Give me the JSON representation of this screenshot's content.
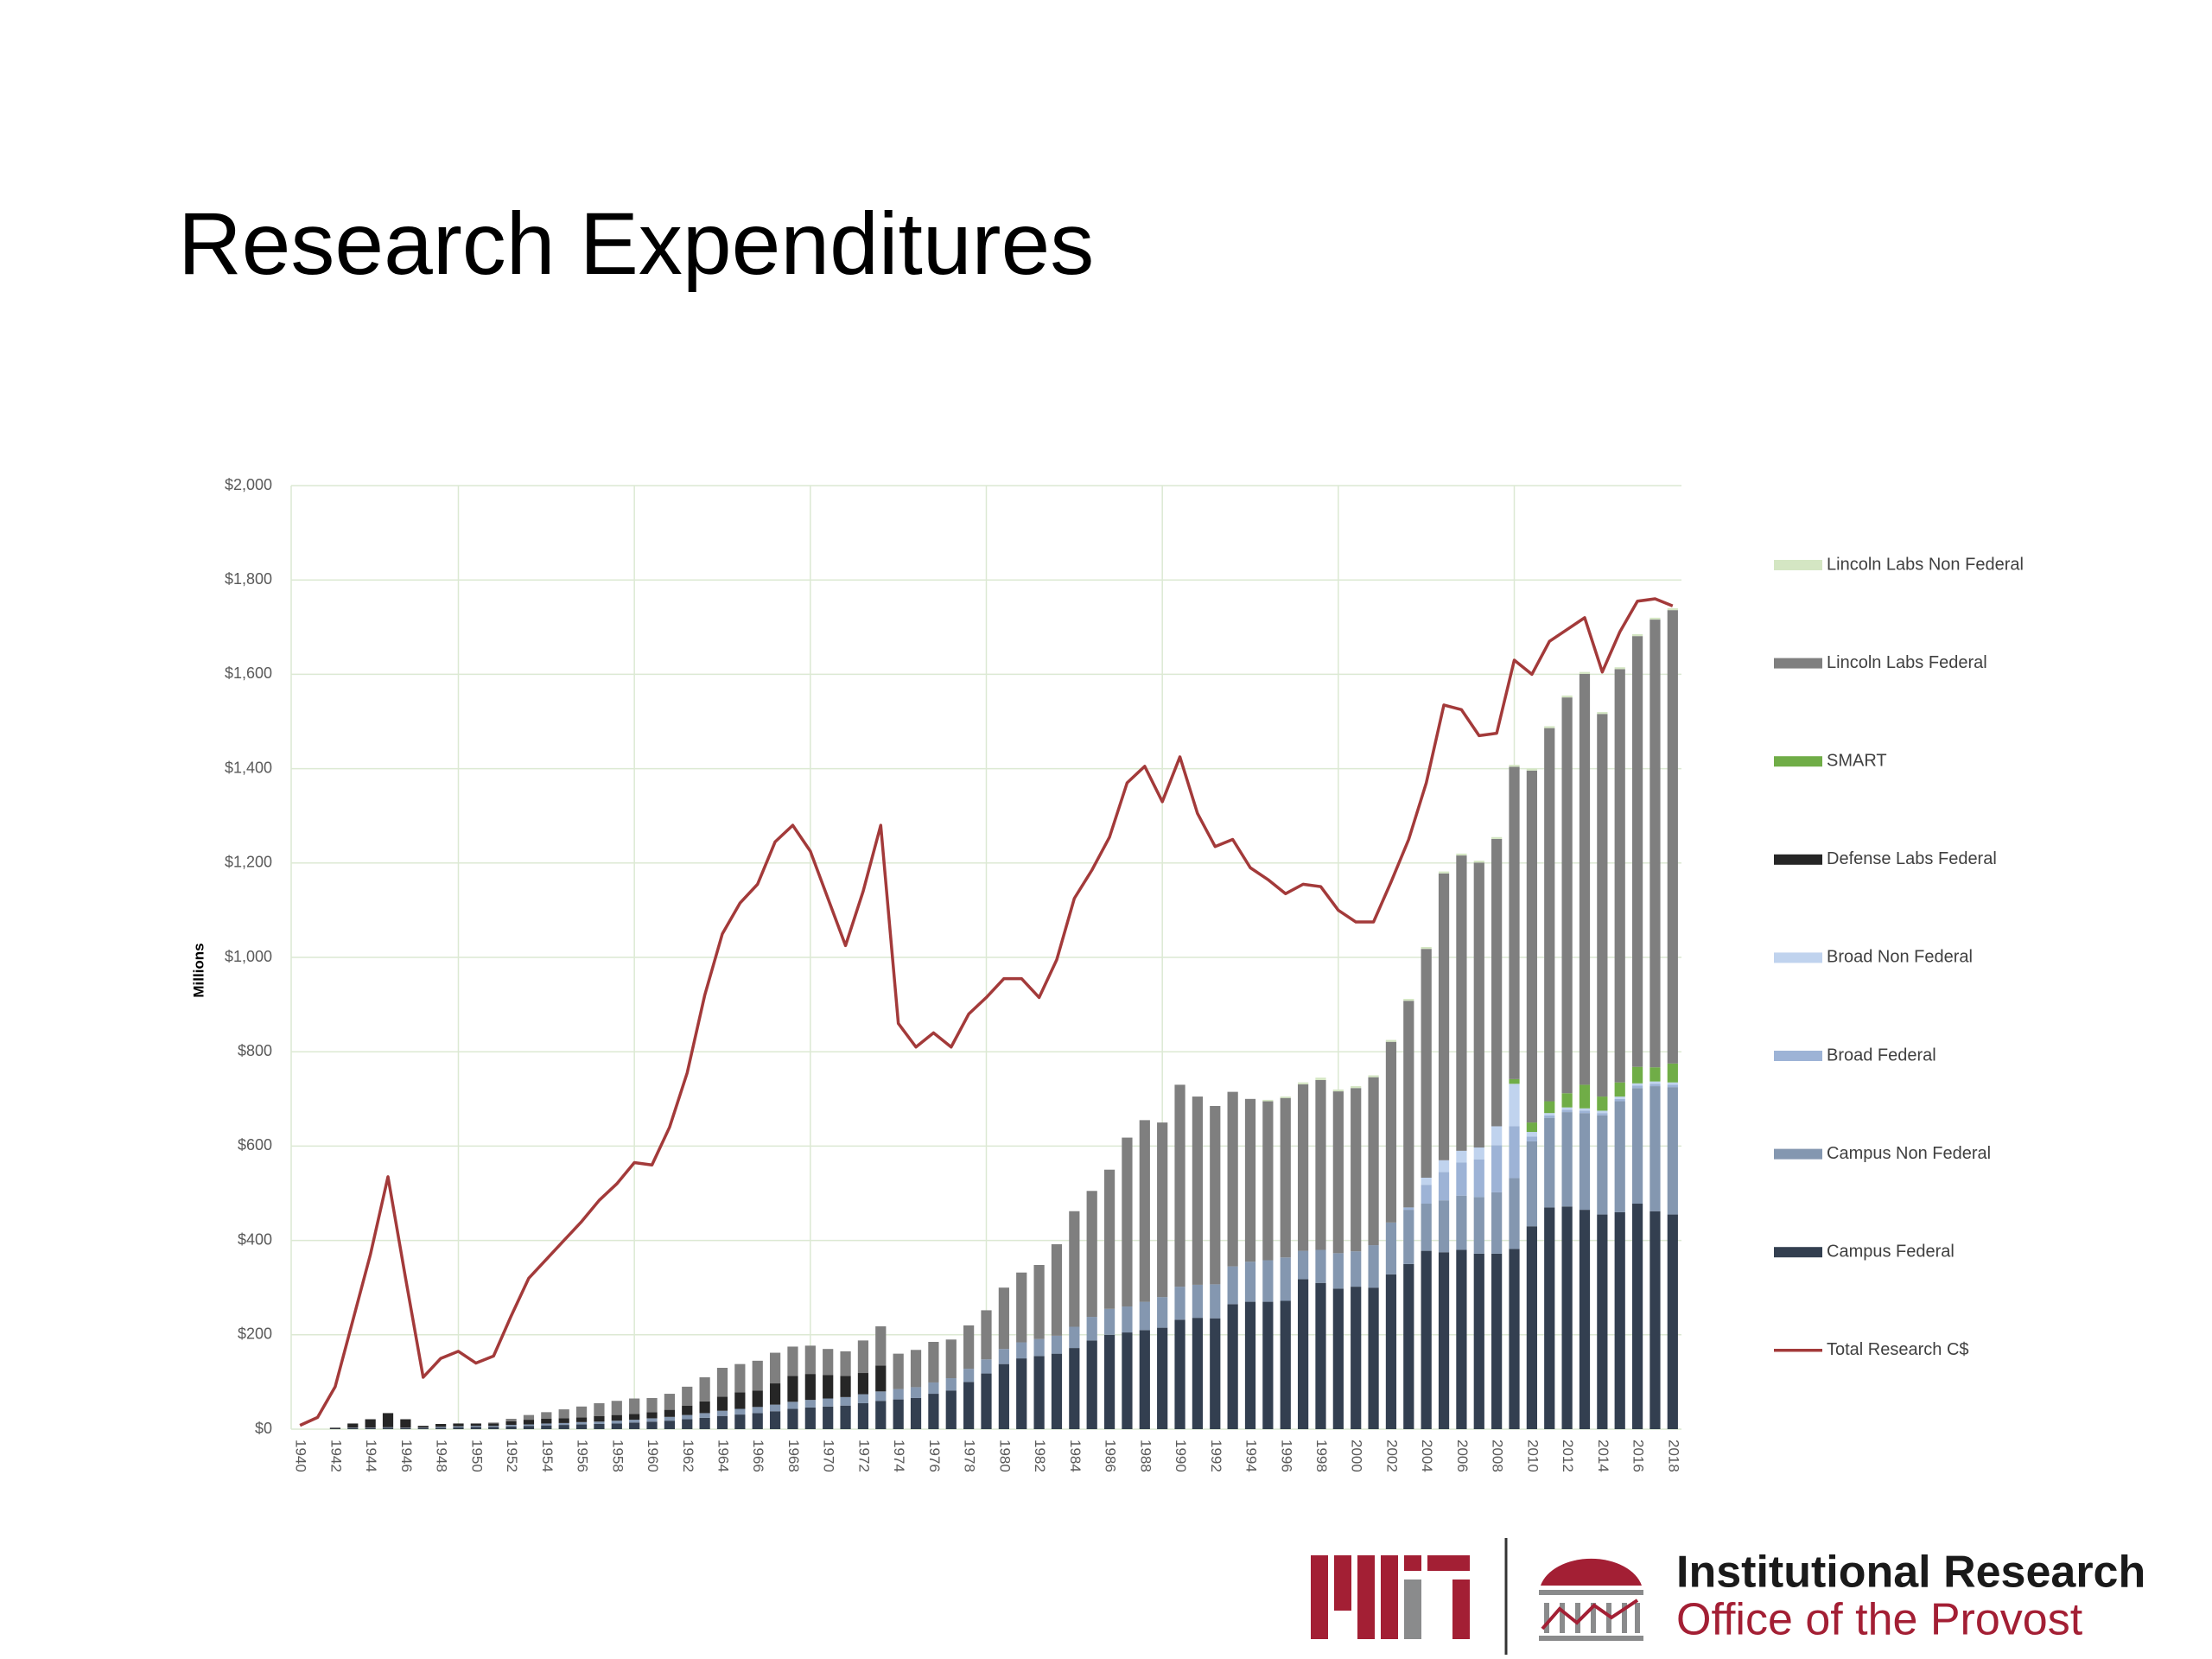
{
  "chart_data": {
    "type": "bar",
    "stacked": true,
    "title": "Research Expenditures",
    "y_label": "Millions",
    "categories": [
      "1940",
      null,
      "1942",
      null,
      "1944",
      null,
      "1946",
      null,
      "1948",
      null,
      "1950",
      null,
      "1952",
      null,
      "1954",
      null,
      "1956",
      null,
      "1958",
      null,
      "1960",
      null,
      "1962",
      null,
      "1964",
      null,
      "1966",
      null,
      "1968",
      null,
      "1970",
      null,
      "1972",
      null,
      "1974",
      null,
      "1976",
      null,
      "1978",
      null,
      "1980",
      null,
      "1982",
      null,
      "1984",
      null,
      "1986",
      null,
      "1988",
      null,
      "1990",
      null,
      "1992",
      null,
      "1994",
      null,
      "1996",
      null,
      "1998",
      null,
      "2000",
      null,
      "2002",
      null,
      "2004",
      null,
      "2006",
      null,
      "2008",
      null,
      "2010",
      null,
      "2012",
      null,
      "2014",
      null,
      "2016",
      null,
      "2018"
    ],
    "ylim": [
      0,
      2000
    ],
    "yticks": [
      {
        "value": 0,
        "label": "$0"
      },
      {
        "value": 200,
        "label": "$200"
      },
      {
        "value": 400,
        "label": "$400"
      },
      {
        "value": 600,
        "label": "$600"
      },
      {
        "value": 800,
        "label": "$800"
      },
      {
        "value": 1000,
        "label": "$1,000"
      },
      {
        "value": 1200,
        "label": "$1,200"
      },
      {
        "value": 1400,
        "label": "$1,400"
      },
      {
        "value": 1600,
        "label": "$1,600"
      },
      {
        "value": 1800,
        "label": "$1,800"
      },
      {
        "value": 2000,
        "label": "$2,000"
      }
    ],
    "grid": true,
    "legend": "right",
    "series": [
      {
        "name": "Campus Federal",
        "color": "#333f50",
        "values": [
          0,
          0,
          1,
          2,
          2,
          3,
          2,
          2,
          3,
          4,
          5,
          5,
          6,
          7,
          8,
          9,
          10,
          11,
          12,
          14,
          16,
          18,
          21,
          24,
          28,
          31,
          34,
          38,
          43,
          46,
          48,
          50,
          55,
          60,
          63,
          66,
          75,
          82,
          100,
          118,
          138,
          150,
          155,
          160,
          172,
          188,
          200,
          205,
          210,
          215,
          232,
          236,
          235,
          265,
          270,
          270,
          272,
          318,
          310,
          298,
          302,
          300,
          328,
          350,
          378,
          375,
          380,
          372,
          372,
          382,
          430,
          470,
          472,
          465,
          455,
          460,
          478,
          462,
          455
        ]
      },
      {
        "name": "Campus Non Federal",
        "color": "#8497b0",
        "values": [
          0,
          0,
          0,
          1,
          1,
          1,
          1,
          1,
          2,
          2,
          2,
          2,
          3,
          3,
          4,
          4,
          5,
          5,
          6,
          6,
          7,
          8,
          9,
          10,
          11,
          12,
          13,
          14,
          15,
          16,
          17,
          18,
          19,
          20,
          22,
          23,
          24,
          26,
          28,
          30,
          32,
          34,
          36,
          38,
          45,
          50,
          55,
          55,
          60,
          65,
          70,
          70,
          72,
          80,
          85,
          88,
          92,
          60,
          70,
          75,
          75,
          90,
          110,
          115,
          100,
          110,
          115,
          120,
          130,
          150,
          180,
          190,
          200,
          205,
          210,
          235,
          245,
          265,
          270
        ]
      },
      {
        "name": "Broad Federal",
        "color": "#9db3d6",
        "values": [
          0,
          0,
          0,
          0,
          0,
          0,
          0,
          0,
          0,
          0,
          0,
          0,
          0,
          0,
          0,
          0,
          0,
          0,
          0,
          0,
          0,
          0,
          0,
          0,
          0,
          0,
          0,
          0,
          0,
          0,
          0,
          0,
          0,
          0,
          0,
          0,
          0,
          0,
          0,
          0,
          0,
          0,
          0,
          0,
          0,
          0,
          0,
          0,
          0,
          0,
          0,
          0,
          0,
          0,
          0,
          0,
          0,
          0,
          0,
          0,
          0,
          0,
          0,
          5,
          40,
          60,
          70,
          80,
          100,
          110,
          10,
          5,
          5,
          5,
          5,
          5,
          5,
          5,
          5
        ]
      },
      {
        "name": "Broad Non Federal",
        "color": "#c0d3ee",
        "values": [
          0,
          0,
          0,
          0,
          0,
          0,
          0,
          0,
          0,
          0,
          0,
          0,
          0,
          0,
          0,
          0,
          0,
          0,
          0,
          0,
          0,
          0,
          0,
          0,
          0,
          0,
          0,
          0,
          0,
          0,
          0,
          0,
          0,
          0,
          0,
          0,
          0,
          0,
          0,
          0,
          0,
          0,
          0,
          0,
          0,
          0,
          0,
          0,
          0,
          0,
          0,
          0,
          0,
          0,
          0,
          0,
          0,
          0,
          0,
          0,
          0,
          0,
          0,
          0,
          15,
          25,
          25,
          25,
          40,
          90,
          10,
          5,
          5,
          5,
          5,
          5,
          5,
          5,
          5
        ]
      },
      {
        "name": "Defense Labs Federal",
        "color": "#262626",
        "values": [
          0,
          0,
          2,
          9,
          18,
          30,
          18,
          4,
          6,
          6,
          5,
          5,
          8,
          10,
          10,
          10,
          10,
          12,
          12,
          12,
          13,
          15,
          20,
          25,
          30,
          35,
          35,
          45,
          55,
          55,
          50,
          45,
          45,
          55,
          0,
          0,
          0,
          0,
          0,
          0,
          0,
          0,
          0,
          0,
          0,
          0,
          0,
          0,
          0,
          0,
          0,
          0,
          0,
          0,
          0,
          0,
          0,
          0,
          0,
          0,
          0,
          0,
          0,
          0,
          0,
          0,
          0,
          0,
          0,
          0,
          0,
          0,
          0,
          0,
          0,
          0,
          0,
          0,
          0
        ]
      },
      {
        "name": "SMART",
        "color": "#70ad47",
        "values": [
          0,
          0,
          0,
          0,
          0,
          0,
          0,
          0,
          0,
          0,
          0,
          0,
          0,
          0,
          0,
          0,
          0,
          0,
          0,
          0,
          0,
          0,
          0,
          0,
          0,
          0,
          0,
          0,
          0,
          0,
          0,
          0,
          0,
          0,
          0,
          0,
          0,
          0,
          0,
          0,
          0,
          0,
          0,
          0,
          0,
          0,
          0,
          0,
          0,
          0,
          0,
          0,
          0,
          0,
          0,
          0,
          0,
          0,
          0,
          0,
          0,
          0,
          0,
          0,
          0,
          0,
          0,
          0,
          0,
          10,
          20,
          25,
          30,
          50,
          30,
          30,
          35,
          30,
          40
        ]
      },
      {
        "name": "Lincoln Labs Federal",
        "color": "#7f7f7f",
        "values": [
          0,
          0,
          0,
          0,
          0,
          0,
          0,
          0,
          0,
          0,
          0,
          2,
          5,
          10,
          14,
          19,
          23,
          27,
          30,
          33,
          30,
          34,
          40,
          51,
          61,
          60,
          63,
          65,
          62,
          60,
          55,
          52,
          69,
          83,
          75,
          79,
          86,
          82,
          92,
          104,
          130,
          148,
          157,
          194,
          245,
          267,
          295,
          358,
          385,
          370,
          428,
          399,
          378,
          370,
          345,
          337,
          338,
          353,
          360,
          343,
          346,
          356,
          383,
          438,
          485,
          608,
          626,
          604,
          609,
          662,
          746,
          791,
          839,
          871,
          811,
          876,
          913,
          949,
          961
        ]
      },
      {
        "name": "Lincoln Labs Non Federal",
        "color": "#d4e6c3",
        "values": [
          0,
          0,
          0,
          0,
          0,
          0,
          0,
          0,
          0,
          0,
          0,
          0,
          0,
          0,
          0,
          0,
          0,
          0,
          0,
          0,
          0,
          0,
          0,
          0,
          0,
          0,
          0,
          0,
          0,
          0,
          0,
          0,
          0,
          0,
          0,
          0,
          0,
          0,
          0,
          0,
          0,
          0,
          0,
          0,
          0,
          0,
          0,
          0,
          0,
          0,
          0,
          0,
          0,
          0,
          0,
          3,
          3,
          4,
          5,
          4,
          4,
          4,
          4,
          4,
          4,
          4,
          4,
          4,
          4,
          4,
          4,
          4,
          4,
          4,
          4,
          4,
          4,
          4,
          4
        ]
      },
      {
        "name": "Total Research C$",
        "type": "line",
        "color": "#a33a3a",
        "values": [
          8,
          25,
          90,
          230,
          370,
          535,
          320,
          110,
          150,
          165,
          140,
          155,
          240,
          320,
          360,
          400,
          440,
          485,
          520,
          565,
          560,
          640,
          755,
          920,
          1050,
          1115,
          1155,
          1245,
          1280,
          1225,
          1125,
          1025,
          1140,
          1280,
          860,
          810,
          840,
          810,
          880,
          915,
          955,
          955,
          915,
          995,
          1125,
          1185,
          1255,
          1370,
          1405,
          1330,
          1425,
          1305,
          1235,
          1250,
          1190,
          1165,
          1135,
          1155,
          1150,
          1100,
          1075,
          1075,
          1160,
          1250,
          1370,
          1535,
          1525,
          1470,
          1475,
          1630,
          1600,
          1670,
          1695,
          1720,
          1605,
          1690,
          1755,
          1760,
          1745
        ]
      }
    ]
  },
  "logo": {
    "name": "Institutional Research",
    "subtitle": "Office of the Provost"
  }
}
